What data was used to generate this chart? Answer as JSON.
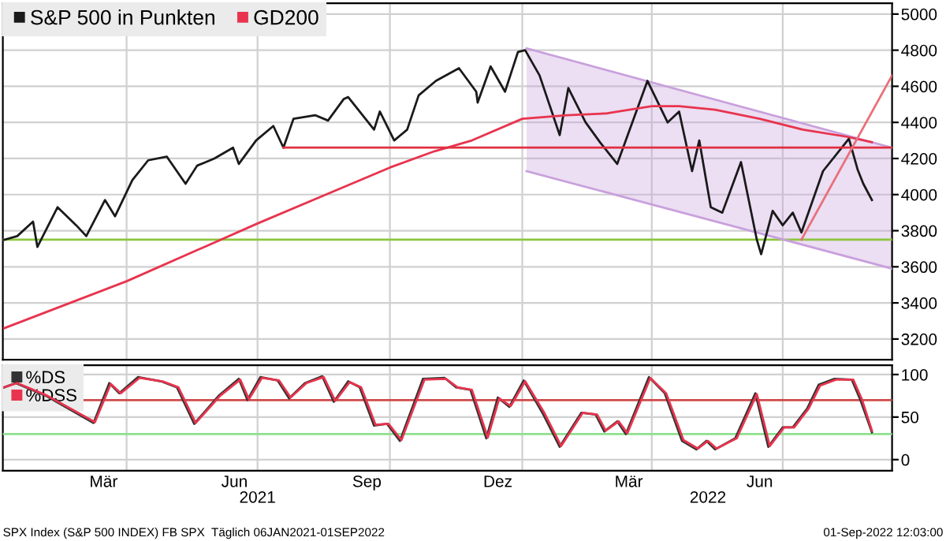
{
  "chart_data": [
    {
      "type": "line",
      "legend": "top left",
      "grid": true,
      "tick_labels": "y",
      "xlim": [
        "2021-01-05",
        "2022-09-15"
      ],
      "ylim": [
        3085,
        5060
      ],
      "xticks": [
        {
          "value": "2021-04-01",
          "label": null
        },
        {
          "value": "2021-07-01",
          "label": null
        },
        {
          "value": "2021-10-01",
          "label": null
        },
        {
          "value": "2022-01-01",
          "label": null
        },
        {
          "value": "2022-04-01",
          "label": null
        },
        {
          "value": "2022-07-01",
          "label": null
        }
      ],
      "yticks": [
        3200,
        3400,
        3600,
        3800,
        4000,
        4200,
        4400,
        4600,
        4800,
        5000
      ],
      "ref_lines": [
        {
          "axis": "y",
          "value": 3750,
          "color": "#8cc63f",
          "line_style": "solid"
        }
      ],
      "series": [
        {
          "type": "area",
          "color": "#c9a0dc",
          "x": [
            "2022-01-04",
            "2022-09-15"
          ],
          "values": [
            4810,
            4260
          ]
        },
        {
          "color": "#c9a0dc",
          "x": [
            "2022-01-04",
            "2022-09-15"
          ],
          "values": [
            4130,
            3590
          ]
        },
        {
          "name": "S&P 500 in Punkten",
          "color": "#1a1a1a",
          "x": [
            "2021-01-06",
            "2021-01-15",
            "2021-01-26",
            "2021-01-29",
            "2021-02-12",
            "2021-02-25",
            "2021-03-04",
            "2021-03-17",
            "2021-03-24",
            "2021-04-05",
            "2021-04-16",
            "2021-04-29",
            "2021-05-12",
            "2021-05-20",
            "2021-06-01",
            "2021-06-14",
            "2021-06-18",
            "2021-06-30",
            "2021-07-12",
            "2021-07-19",
            "2021-07-26",
            "2021-08-10",
            "2021-08-19",
            "2021-08-30",
            "2021-09-02",
            "2021-09-20",
            "2021-09-24",
            "2021-10-04",
            "2021-10-13",
            "2021-10-21",
            "2021-11-02",
            "2021-11-18",
            "2021-11-30",
            "2021-12-01",
            "2021-12-10",
            "2021-12-20",
            "2021-12-29",
            "2022-01-03",
            "2022-01-13",
            "2022-01-27",
            "2022-02-02",
            "2022-02-14",
            "2022-02-24",
            "2022-03-08",
            "2022-03-29",
            "2022-04-12",
            "2022-04-20",
            "2022-04-29",
            "2022-05-04",
            "2022-05-12",
            "2022-05-20",
            "2022-06-02",
            "2022-06-13",
            "2022-06-16",
            "2022-06-24",
            "2022-07-01",
            "2022-07-08",
            "2022-07-14",
            "2022-07-29",
            "2022-08-16",
            "2022-08-22",
            "2022-08-26",
            "2022-09-01"
          ],
          "values": [
            3750,
            3770,
            3850,
            3710,
            3930,
            3830,
            3770,
            3970,
            3880,
            4080,
            4190,
            4210,
            4060,
            4160,
            4200,
            4260,
            4170,
            4300,
            4380,
            4260,
            4420,
            4440,
            4410,
            4530,
            4540,
            4360,
            4460,
            4300,
            4360,
            4550,
            4630,
            4700,
            4570,
            4510,
            4710,
            4570,
            4790,
            4800,
            4660,
            4330,
            4590,
            4400,
            4290,
            4170,
            4630,
            4400,
            4460,
            4130,
            4300,
            3930,
            3900,
            4180,
            3750,
            3670,
            3910,
            3830,
            3900,
            3790,
            4130,
            4310,
            4140,
            4060,
            3970
          ]
        },
        {
          "name": "GD200",
          "color": "#e8344e",
          "x": [
            "2021-01-06",
            "2021-04-01",
            "2021-07-01",
            "2021-10-01",
            "2021-11-01",
            "2021-11-27",
            "2022-01-01",
            "2022-02-01",
            "2022-03-01",
            "2022-04-01",
            "2022-04-20",
            "2022-05-15",
            "2022-06-15",
            "2022-07-15",
            "2022-08-15",
            "2022-09-01"
          ],
          "values": [
            3260,
            3520,
            3840,
            4150,
            4240,
            4300,
            4420,
            4440,
            4450,
            4490,
            4490,
            4470,
            4420,
            4360,
            4320,
            4290
          ]
        },
        {
          "color": "#e03040",
          "x": [
            "2021-07-19",
            "2022-09-15"
          ],
          "values": [
            4260,
            4260
          ]
        },
        {
          "color": "#e8707a",
          "x": [
            "2022-07-14",
            "2022-09-15"
          ],
          "values": [
            3750,
            4660
          ]
        }
      ]
    },
    {
      "type": "line",
      "legend": "top left",
      "grid": true,
      "xlim": [
        "2021-01-05",
        "2022-09-15"
      ],
      "ylim": [
        -13,
        111
      ],
      "xticks": [
        {
          "value": "2021-04-01",
          "label": null
        },
        {
          "value": "2021-07-01",
          "label": null
        },
        {
          "value": "2021-10-01",
          "label": null
        },
        {
          "value": "2022-01-01",
          "label": null
        },
        {
          "value": "2022-04-01",
          "label": null
        },
        {
          "value": "2022-07-01",
          "label": null
        },
        {
          "value": "2021-03-16",
          "label": "Mär"
        },
        {
          "value": "2021-06-15",
          "label": "Jun"
        },
        {
          "value": "2021-09-15",
          "label": "Sep"
        },
        {
          "value": "2021-12-15",
          "label": "Dez"
        },
        {
          "value": "2022-03-16",
          "label": "Mär"
        },
        {
          "value": "2022-06-15",
          "label": "Jun"
        }
      ],
      "yticks": [
        0,
        50,
        100
      ],
      "ref_lines": [
        {
          "axis": "y",
          "value": 70,
          "color": "#d04a4a",
          "line_style": "solid"
        },
        {
          "axis": "y",
          "value": 30,
          "color": "#8ee08e",
          "line_style": "solid"
        }
      ],
      "x2lim": [
        "2021-01-05",
        "2022-09-15"
      ],
      "x2ticks": [
        {
          "value": "2021-07-01",
          "label": "2021"
        },
        {
          "value": "2022-05-10",
          "label": "2022"
        }
      ],
      "annotations": [
        "SPX Index (S&P 500 INDEX) FB SPX  Täglich 06JAN2021-01SEP2022",
        "01-Sep-2022 12:03:00"
      ],
      "series": [
        {
          "name": "%DS",
          "color": "#333333",
          "x": [
            "2021-01-06",
            "2021-01-14",
            "2021-02-04",
            "2021-03-09",
            "2021-03-20",
            "2021-03-27",
            "2021-04-09",
            "2021-04-25",
            "2021-05-06",
            "2021-05-18",
            "2021-06-04",
            "2021-06-18",
            "2021-06-24",
            "2021-07-03",
            "2021-07-15",
            "2021-07-23",
            "2021-08-03",
            "2021-08-15",
            "2021-08-23",
            "2021-09-02",
            "2021-09-10",
            "2021-09-20",
            "2021-09-29",
            "2021-10-08",
            "2021-10-24",
            "2021-11-08",
            "2021-11-16",
            "2021-11-26",
            "2021-12-07",
            "2021-12-15",
            "2021-12-23",
            "2022-01-02",
            "2022-01-15",
            "2022-01-27",
            "2022-02-11",
            "2022-02-21",
            "2022-02-27",
            "2022-03-08",
            "2022-03-14",
            "2022-03-30",
            "2022-04-10",
            "2022-04-22",
            "2022-05-02",
            "2022-05-09",
            "2022-05-15",
            "2022-05-29",
            "2022-06-12",
            "2022-06-21",
            "2022-07-01",
            "2022-07-08",
            "2022-07-18",
            "2022-07-26",
            "2022-08-06",
            "2022-08-18",
            "2022-08-24",
            "2022-09-01"
          ],
          "values": [
            85,
            90,
            75,
            43,
            90,
            78,
            97,
            92,
            85,
            42,
            75,
            95,
            70,
            97,
            93,
            72,
            90,
            98,
            68,
            92,
            85,
            40,
            42,
            22,
            95,
            96,
            85,
            82,
            25,
            73,
            62,
            93,
            55,
            15,
            55,
            53,
            33,
            45,
            30,
            97,
            78,
            22,
            12,
            22,
            12,
            25,
            78,
            15,
            38,
            38,
            60,
            88,
            95,
            94,
            70,
            32
          ]
        },
        {
          "name": "%DSS",
          "color": "#e8344e",
          "x": [
            "2021-01-06",
            "2021-01-15",
            "2021-02-05",
            "2021-03-10",
            "2021-03-21",
            "2021-03-28",
            "2021-04-10",
            "2021-04-26",
            "2021-05-07",
            "2021-05-19",
            "2021-06-05",
            "2021-06-19",
            "2021-06-25",
            "2021-07-04",
            "2021-07-16",
            "2021-07-24",
            "2021-08-04",
            "2021-08-16",
            "2021-08-24",
            "2021-09-03",
            "2021-09-11",
            "2021-09-21",
            "2021-09-30",
            "2021-10-09",
            "2021-10-25",
            "2021-11-09",
            "2021-11-17",
            "2021-11-27",
            "2021-12-08",
            "2021-12-16",
            "2021-12-24",
            "2022-01-03",
            "2022-01-16",
            "2022-01-28",
            "2022-02-12",
            "2022-02-22",
            "2022-02-28",
            "2022-03-09",
            "2022-03-15",
            "2022-03-31",
            "2022-04-11",
            "2022-04-23",
            "2022-05-03",
            "2022-05-10",
            "2022-05-16",
            "2022-05-30",
            "2022-06-13",
            "2022-06-22",
            "2022-07-02",
            "2022-07-09",
            "2022-07-19",
            "2022-07-27",
            "2022-08-07",
            "2022-08-19",
            "2022-08-25",
            "2022-09-01"
          ],
          "values": [
            85,
            90,
            75,
            44,
            89,
            78,
            96,
            92,
            85,
            43,
            75,
            94,
            71,
            96,
            93,
            73,
            90,
            97,
            69,
            91,
            85,
            41,
            42,
            23,
            94,
            95,
            85,
            82,
            26,
            72,
            63,
            92,
            56,
            16,
            55,
            53,
            34,
            45,
            31,
            96,
            78,
            23,
            13,
            22,
            13,
            25,
            77,
            16,
            38,
            38,
            60,
            87,
            94,
            94,
            71,
            34
          ]
        }
      ]
    }
  ]
}
